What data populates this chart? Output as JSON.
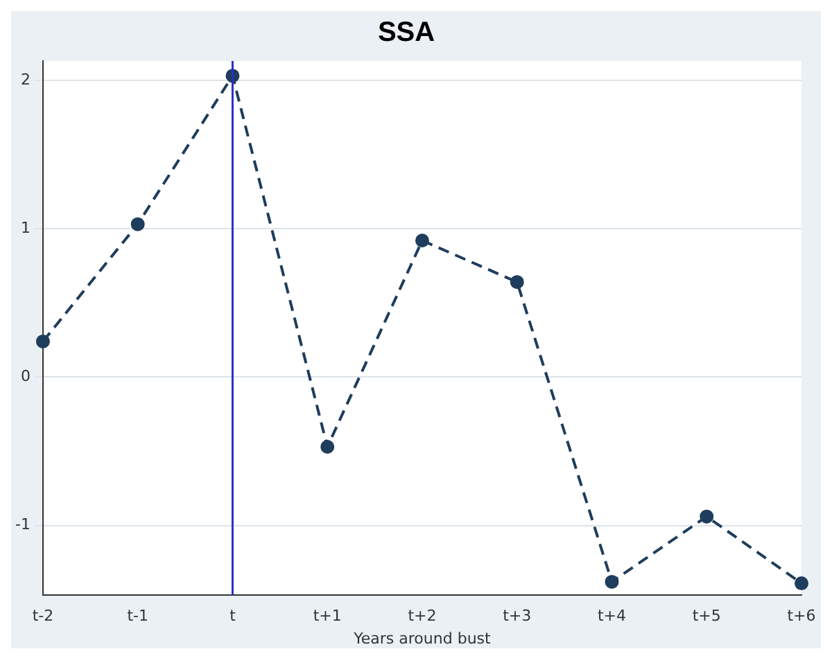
{
  "chart_data": {
    "type": "line",
    "title": "SSA",
    "xlabel": "Years around bust",
    "categories": [
      "t-2",
      "t-1",
      "t",
      "t+1",
      "t+2",
      "t+3",
      "t+4",
      "t+5",
      "t+6"
    ],
    "series": [
      {
        "color": "#1f3d5c",
        "values": [
          0.24,
          1.03,
          2.03,
          -0.47,
          0.92,
          0.64,
          -1.38,
          -0.94,
          -1.39
        ]
      }
    ],
    "ylim": [
      -1.47,
      2.13
    ],
    "yticks": [
      -1,
      0,
      1,
      2
    ],
    "grid": "y",
    "legend": false,
    "marker": "circle",
    "line_style": "dashed",
    "ref_lines": [
      {
        "axis": "x",
        "value": "t",
        "color": "#2e2ec8"
      }
    ]
  }
}
